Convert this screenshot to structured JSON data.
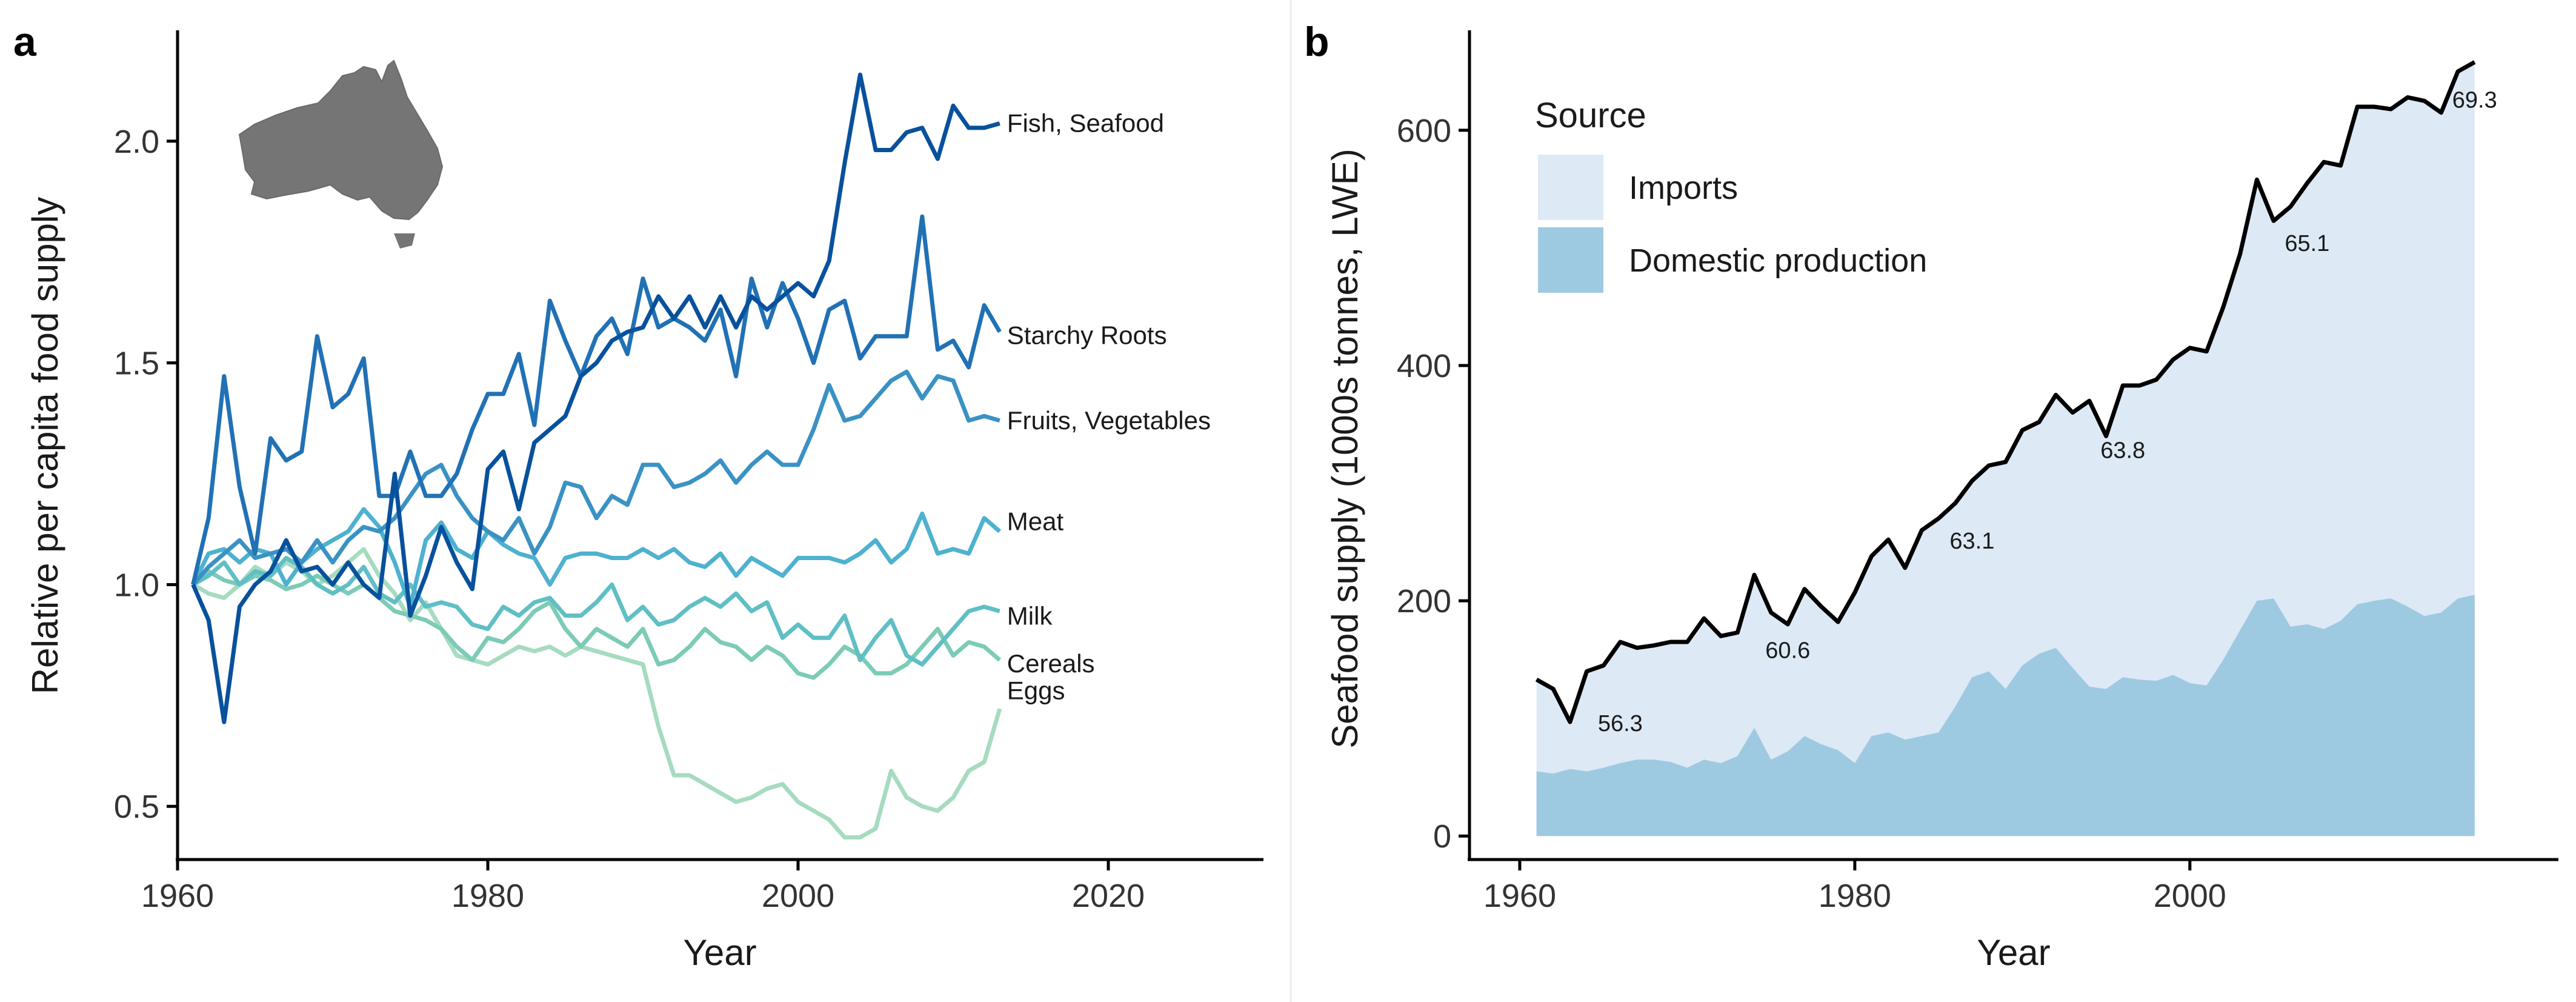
{
  "panels": {
    "a": {
      "letter": "a"
    },
    "b": {
      "letter": "b"
    }
  },
  "icons": {
    "map": "australia-map-icon"
  },
  "colors": {
    "fish": "#08519c",
    "starchy": "#2171b5",
    "fruits": "#3a92c4",
    "meat": "#4eb1cf",
    "milk": "#5fbfc4",
    "cereals": "#7ccbb6",
    "eggs": "#a6dbbf",
    "imports_fill": "#dde9f5",
    "domestic_fill": "#9ecae1",
    "total_line": "#000000",
    "axis": "#000000"
  },
  "chart_data": [
    {
      "id": "a",
      "type": "line",
      "title": "",
      "xlabel": "Year",
      "ylabel": "Relative per capita food supply",
      "xlim": [
        1960,
        2030
      ],
      "ylim": [
        0.38,
        2.25
      ],
      "xticks": [
        1960,
        1980,
        2000,
        2020
      ],
      "yticks": [
        0.5,
        1.0,
        1.5,
        2.0
      ],
      "ytick_labels": [
        "0.5",
        "1.0",
        "1.5",
        "2.0"
      ],
      "x": [
        1961,
        1962,
        1963,
        1964,
        1965,
        1966,
        1967,
        1968,
        1969,
        1970,
        1971,
        1972,
        1973,
        1974,
        1975,
        1976,
        1977,
        1978,
        1979,
        1980,
        1981,
        1982,
        1983,
        1984,
        1985,
        1986,
        1987,
        1988,
        1989,
        1990,
        1991,
        1992,
        1993,
        1994,
        1995,
        1996,
        1997,
        1998,
        1999,
        2000,
        2001,
        2002,
        2003,
        2004,
        2005,
        2006,
        2007,
        2008,
        2009,
        2010,
        2011,
        2012,
        2013
      ],
      "series": [
        {
          "name": "Eggs",
          "color_key": "eggs",
          "values": [
            1.0,
            0.98,
            0.97,
            1.0,
            1.04,
            1.02,
            1.05,
            1.03,
            1.0,
            1.02,
            1.05,
            1.08,
            1.02,
            0.98,
            0.92,
            0.96,
            0.9,
            0.84,
            0.83,
            0.82,
            0.84,
            0.86,
            0.85,
            0.86,
            0.84,
            0.86,
            0.85,
            0.84,
            0.83,
            0.82,
            0.68,
            0.57,
            0.57,
            0.55,
            0.53,
            0.51,
            0.52,
            0.54,
            0.55,
            0.51,
            0.49,
            0.47,
            0.43,
            0.43,
            0.45,
            0.58,
            0.52,
            0.5,
            0.49,
            0.52,
            0.58,
            0.6,
            0.72
          ]
        },
        {
          "name": "Cereals",
          "color_key": "cereals",
          "values": [
            1.0,
            1.03,
            1.01,
            1.0,
            1.02,
            1.01,
            0.99,
            1.0,
            1.02,
            1.0,
            0.98,
            1.0,
            0.97,
            0.94,
            0.93,
            0.92,
            0.9,
            0.86,
            0.83,
            0.88,
            0.87,
            0.9,
            0.94,
            0.96,
            0.9,
            0.86,
            0.9,
            0.88,
            0.86,
            0.9,
            0.82,
            0.83,
            0.86,
            0.9,
            0.87,
            0.86,
            0.83,
            0.86,
            0.84,
            0.8,
            0.79,
            0.82,
            0.86,
            0.84,
            0.8,
            0.8,
            0.82,
            0.86,
            0.9,
            0.84,
            0.87,
            0.86,
            0.83
          ]
        },
        {
          "name": "Milk",
          "color_key": "milk",
          "values": [
            1.0,
            1.02,
            1.05,
            1.0,
            1.03,
            1.02,
            1.06,
            1.04,
            1.0,
            0.98,
            1.0,
            1.04,
            0.98,
            0.96,
            1.0,
            0.95,
            0.96,
            0.95,
            0.91,
            0.9,
            0.95,
            0.93,
            0.96,
            0.97,
            0.93,
            0.93,
            0.96,
            1.0,
            0.92,
            0.95,
            0.91,
            0.92,
            0.95,
            0.97,
            0.95,
            0.98,
            0.94,
            0.96,
            0.88,
            0.91,
            0.88,
            0.88,
            0.93,
            0.83,
            0.88,
            0.92,
            0.84,
            0.82,
            0.86,
            0.9,
            0.94,
            0.95,
            0.94
          ]
        },
        {
          "name": "Meat",
          "color_key": "meat",
          "values": [
            1.0,
            1.07,
            1.08,
            1.05,
            1.08,
            1.07,
            1.0,
            1.05,
            1.08,
            1.1,
            1.12,
            1.17,
            1.13,
            1.05,
            0.95,
            1.1,
            1.14,
            1.08,
            1.06,
            1.12,
            1.09,
            1.07,
            1.06,
            1.0,
            1.06,
            1.07,
            1.07,
            1.06,
            1.06,
            1.08,
            1.06,
            1.08,
            1.05,
            1.04,
            1.07,
            1.02,
            1.06,
            1.04,
            1.02,
            1.06,
            1.06,
            1.06,
            1.05,
            1.07,
            1.1,
            1.05,
            1.08,
            1.16,
            1.07,
            1.08,
            1.07,
            1.15,
            1.12
          ]
        },
        {
          "name": "Fruits, Vegetables",
          "color_key": "fruits",
          "values": [
            1.0,
            1.04,
            1.07,
            1.1,
            1.06,
            1.07,
            1.08,
            1.05,
            1.1,
            1.05,
            1.1,
            1.13,
            1.12,
            1.15,
            1.2,
            1.25,
            1.27,
            1.2,
            1.15,
            1.12,
            1.1,
            1.15,
            1.07,
            1.13,
            1.23,
            1.22,
            1.15,
            1.2,
            1.18,
            1.27,
            1.27,
            1.22,
            1.23,
            1.25,
            1.28,
            1.23,
            1.27,
            1.3,
            1.27,
            1.27,
            1.35,
            1.45,
            1.37,
            1.38,
            1.42,
            1.46,
            1.48,
            1.42,
            1.47,
            1.46,
            1.37,
            1.38,
            1.37
          ]
        },
        {
          "name": "Starchy Roots",
          "color_key": "starchy",
          "values": [
            1.0,
            1.15,
            1.47,
            1.22,
            1.07,
            1.33,
            1.28,
            1.3,
            1.56,
            1.4,
            1.43,
            1.51,
            1.2,
            1.2,
            1.3,
            1.2,
            1.2,
            1.25,
            1.35,
            1.43,
            1.43,
            1.52,
            1.36,
            1.64,
            1.55,
            1.47,
            1.56,
            1.6,
            1.52,
            1.69,
            1.58,
            1.6,
            1.58,
            1.55,
            1.62,
            1.47,
            1.69,
            1.58,
            1.68,
            1.6,
            1.5,
            1.62,
            1.64,
            1.51,
            1.56,
            1.56,
            1.56,
            1.83,
            1.53,
            1.55,
            1.49,
            1.63,
            1.57
          ]
        },
        {
          "name": "Fish, Seafood",
          "color_key": "fish",
          "values": [
            1.0,
            0.92,
            0.69,
            0.95,
            1.0,
            1.03,
            1.1,
            1.03,
            1.04,
            1.0,
            1.05,
            1.0,
            0.97,
            1.25,
            0.93,
            1.02,
            1.13,
            1.05,
            0.99,
            1.26,
            1.3,
            1.17,
            1.32,
            1.35,
            1.38,
            1.47,
            1.5,
            1.55,
            1.57,
            1.58,
            1.65,
            1.6,
            1.65,
            1.58,
            1.65,
            1.58,
            1.65,
            1.62,
            1.65,
            1.68,
            1.65,
            1.73,
            1.95,
            2.15,
            1.98,
            1.98,
            2.02,
            2.03,
            1.96,
            2.08,
            2.03,
            2.03,
            2.04
          ]
        }
      ],
      "series_labels": [
        "Fish, Seafood",
        "Starchy Roots",
        "Fruits, Vegetables",
        "Meat",
        "Milk",
        "Cereals",
        "Eggs"
      ]
    },
    {
      "id": "b",
      "type": "area",
      "title": "",
      "xlabel": "Year",
      "ylabel": "Seafood supply (1000s tonnes, LWE)",
      "xlim": [
        1957,
        2022
      ],
      "ylim": [
        -20,
        685
      ],
      "xticks": [
        1960,
        1980,
        2000
      ],
      "yticks": [
        0,
        200,
        400,
        600
      ],
      "legend": {
        "title": "Source",
        "position": "top-left",
        "entries": [
          {
            "label": "Imports",
            "color_key": "imports_fill"
          },
          {
            "label": "Domestic production",
            "color_key": "domestic_fill"
          }
        ]
      },
      "x": [
        1961,
        1962,
        1963,
        1964,
        1965,
        1966,
        1967,
        1968,
        1969,
        1970,
        1971,
        1972,
        1973,
        1974,
        1975,
        1976,
        1977,
        1978,
        1979,
        1980,
        1981,
        1982,
        1983,
        1984,
        1985,
        1986,
        1987,
        1988,
        1989,
        1990,
        1991,
        1992,
        1993,
        1994,
        1995,
        1996,
        1997,
        1998,
        1999,
        2000,
        2001,
        2002,
        2003,
        2004,
        2005,
        2006,
        2007,
        2008,
        2009,
        2010,
        2011,
        2012,
        2013,
        2014,
        2015,
        2016,
        2017
      ],
      "series": [
        {
          "name": "Total",
          "values": [
            133,
            125,
            97,
            140,
            145,
            165,
            160,
            162,
            165,
            165,
            185,
            170,
            173,
            222,
            190,
            180,
            210,
            195,
            182,
            207,
            238,
            252,
            228,
            260,
            270,
            283,
            302,
            315,
            318,
            345,
            352,
            375,
            360,
            370,
            340,
            383,
            383,
            388,
            405,
            415,
            412,
            450,
            495,
            558,
            523,
            535,
            555,
            573,
            570,
            620,
            620,
            618,
            628,
            625,
            615,
            650,
            658
          ]
        },
        {
          "name": "Domestic production",
          "values": [
            55,
            53,
            57,
            55,
            58,
            62,
            65,
            65,
            63,
            58,
            65,
            62,
            68,
            92,
            65,
            72,
            85,
            78,
            73,
            62,
            85,
            88,
            82,
            85,
            88,
            110,
            135,
            140,
            125,
            145,
            155,
            160,
            143,
            127,
            125,
            135,
            133,
            132,
            137,
            130,
            128,
            150,
            175,
            200,
            202,
            178,
            180,
            176,
            183,
            197,
            200,
            202,
            195,
            187,
            190,
            202,
            205
          ]
        }
      ],
      "annotations": [
        {
          "x": 1966,
          "y": 96,
          "text": "56.3"
        },
        {
          "x": 1976,
          "y": 158,
          "text": "60.6"
        },
        {
          "x": 1987,
          "y": 251,
          "text": "63.1"
        },
        {
          "x": 1996,
          "y": 328,
          "text": "63.8"
        },
        {
          "x": 2007,
          "y": 504,
          "text": "65.1"
        },
        {
          "x": 2017,
          "y": 626,
          "text": "69.3"
        }
      ]
    }
  ]
}
